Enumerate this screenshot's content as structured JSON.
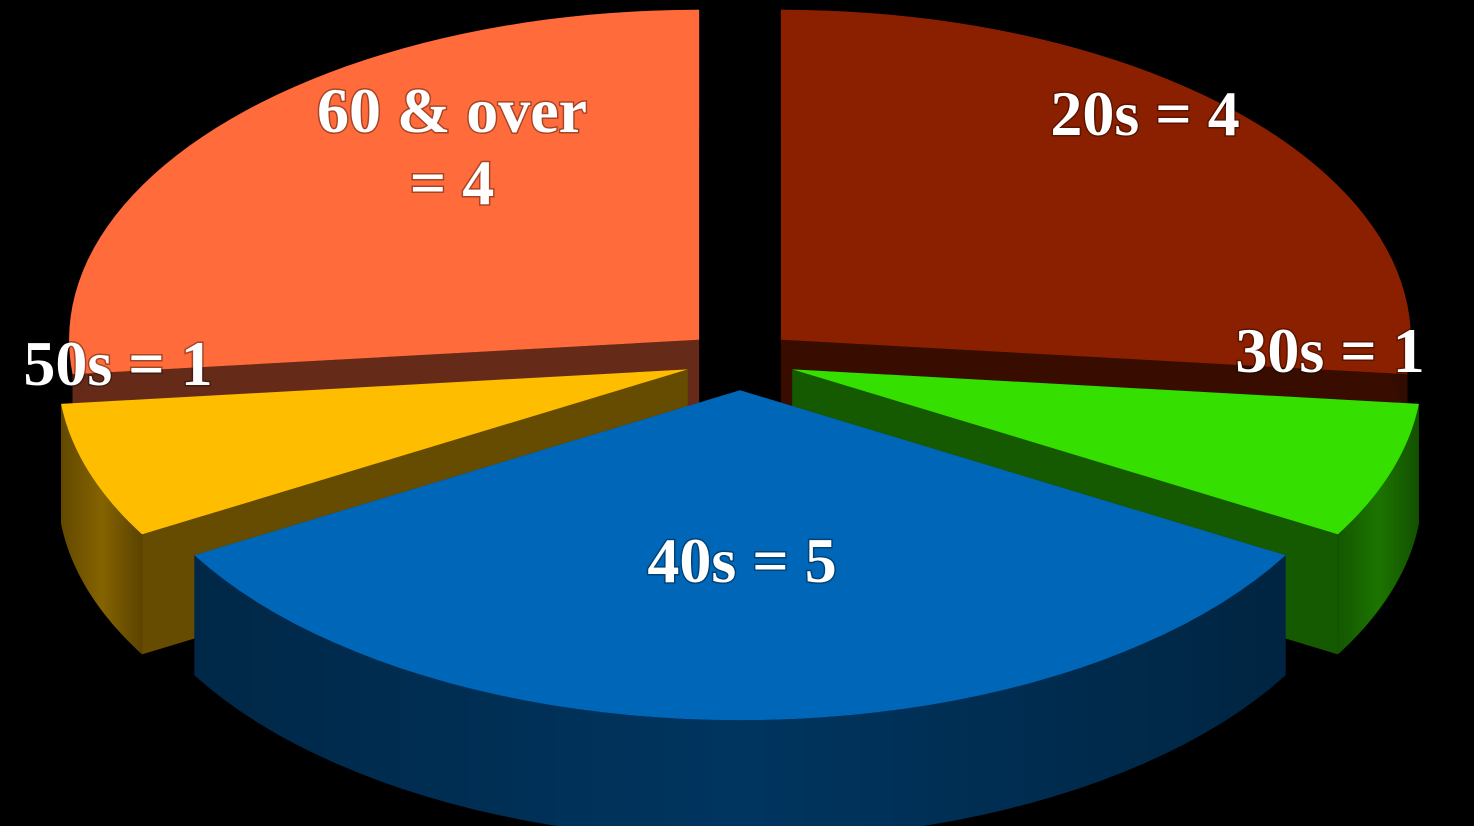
{
  "chart_data": {
    "type": "pie",
    "style": "3d-exploded",
    "background": "#000000",
    "slices": [
      {
        "name": "20s",
        "value": 4,
        "color": "#8b2000",
        "label_lines": [
          "20s = 4"
        ]
      },
      {
        "name": "30s",
        "value": 1,
        "color": "#35e000",
        "label_lines": [
          "30s = 1"
        ]
      },
      {
        "name": "40s",
        "value": 5,
        "color": "#0066b8",
        "label_lines": [
          "40s = 5"
        ]
      },
      {
        "name": "50s",
        "value": 1,
        "color": "#ffbd00",
        "label_lines": [
          "50s = 1"
        ]
      },
      {
        "name": "60 & over",
        "value": 4,
        "color": "#ff6b3b",
        "label_lines": [
          "60 & over",
          "= 4"
        ]
      }
    ]
  }
}
